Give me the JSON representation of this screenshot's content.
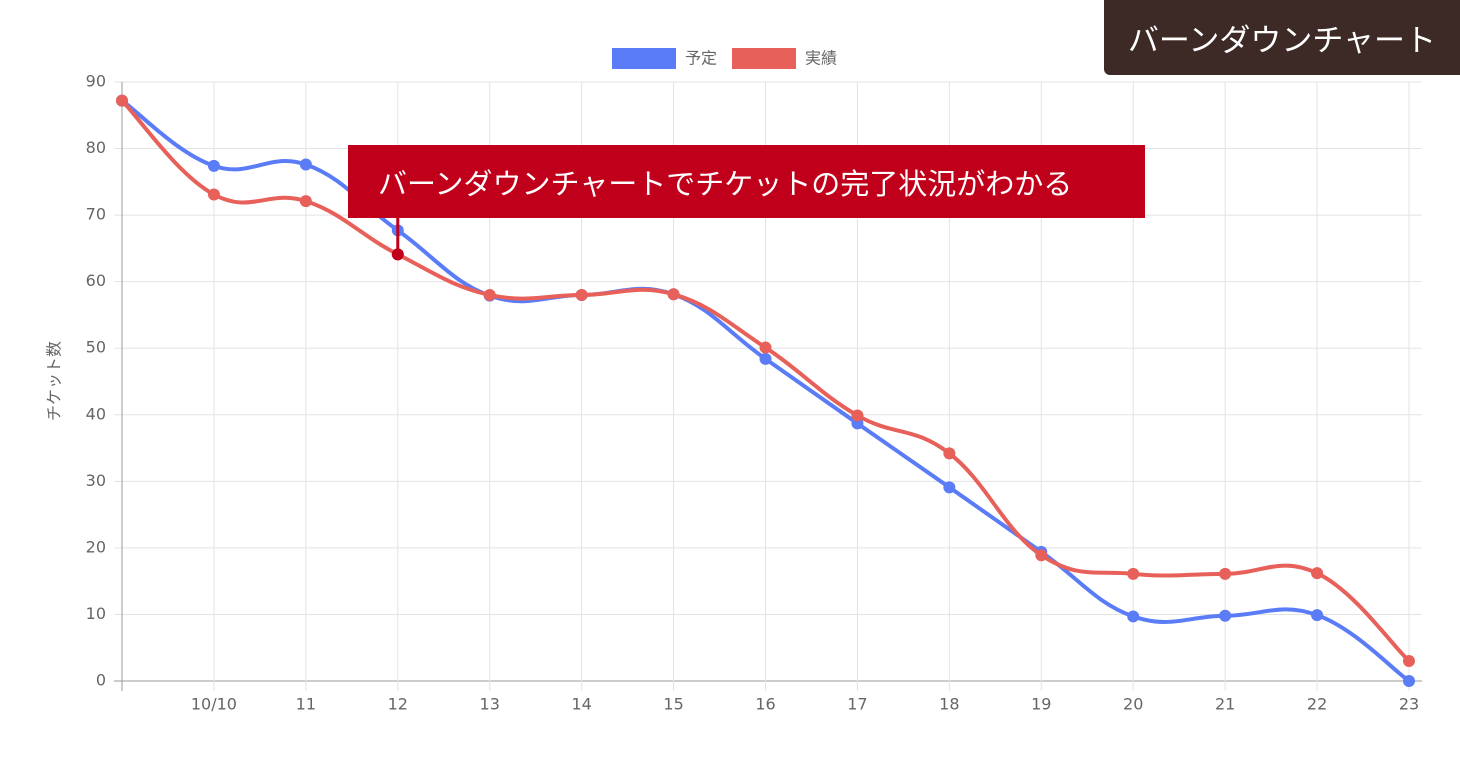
{
  "chart_data": {
    "type": "line",
    "title": "バーンダウンチャート",
    "annotation": "バーンダウンチャートでチケットの完了状況がわかる",
    "y_label": "チケット数",
    "categories": [
      null,
      "10/10",
      "11",
      "12",
      "13",
      "14",
      "15",
      "16",
      "17",
      "18",
      "19",
      "20",
      "21",
      "22",
      "23"
    ],
    "series": [
      {
        "name": "予定",
        "color": "#5b7cf7",
        "values": [
          87.2,
          77.4,
          77.6,
          67.7,
          57.9,
          58,
          58.1,
          48.4,
          38.7,
          29.1,
          19.4,
          9.7,
          9.8,
          9.9,
          0
        ]
      },
      {
        "name": "実績",
        "color": "#e8605a",
        "values": [
          87.2,
          73.1,
          72.1,
          64.1,
          58,
          58,
          58.1,
          50.1,
          39.9,
          34.2,
          18.9,
          16.1,
          16.1,
          16.2,
          3
        ]
      }
    ],
    "ylim": [
      0,
      90
    ],
    "yticks": [
      0,
      10,
      20,
      30,
      40,
      50,
      60,
      70,
      80,
      90
    ],
    "grid": true,
    "legend": "top"
  }
}
